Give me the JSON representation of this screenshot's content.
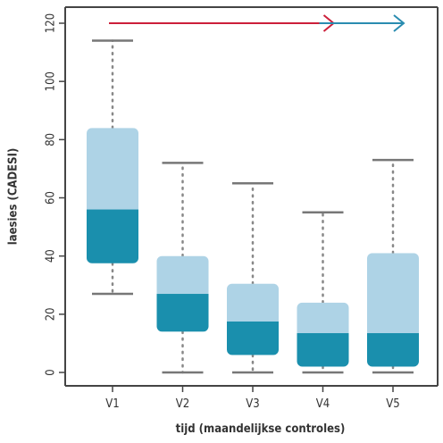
{
  "chart_data": {
    "type": "boxplot",
    "title": "",
    "xlabel": "tijd (maandelijkse controles)",
    "ylabel": "laesies (CADESI)",
    "ylim": [
      -5,
      125
    ],
    "yticks": [
      0,
      20,
      40,
      60,
      80,
      100,
      120
    ],
    "grid": false,
    "categories": [
      "V1",
      "V2",
      "V3",
      "V4",
      "V5"
    ],
    "boxes": [
      {
        "label": "V1",
        "whisker_low": 27,
        "q1": 37.5,
        "median": 56,
        "q3": 84,
        "whisker_high": 114
      },
      {
        "label": "V2",
        "whisker_low": 0,
        "q1": 14,
        "median": 27,
        "q3": 40,
        "whisker_high": 72
      },
      {
        "label": "V3",
        "whisker_low": 0,
        "q1": 6,
        "median": 17.5,
        "q3": 30.5,
        "whisker_high": 65
      },
      {
        "label": "V4",
        "whisker_low": 0,
        "q1": 2,
        "median": 13.5,
        "q3": 24,
        "whisker_high": 55
      },
      {
        "label": "V5",
        "whisker_low": 0,
        "q1": 2,
        "median": 13.5,
        "q3": 41,
        "whisker_high": 73
      }
    ],
    "arrows": [
      {
        "from": "V1",
        "to": "V4",
        "y": 120,
        "color": "#cc1f3a"
      },
      {
        "from": "V4",
        "to": "V5",
        "y": 120,
        "color": "#2a8cb0"
      }
    ],
    "colors": {
      "box_upper": "#aed3e6",
      "box_lower": "#1a8fad",
      "whisker": "#888888",
      "whisker_cap": "#777777",
      "axis": "#444444"
    }
  }
}
